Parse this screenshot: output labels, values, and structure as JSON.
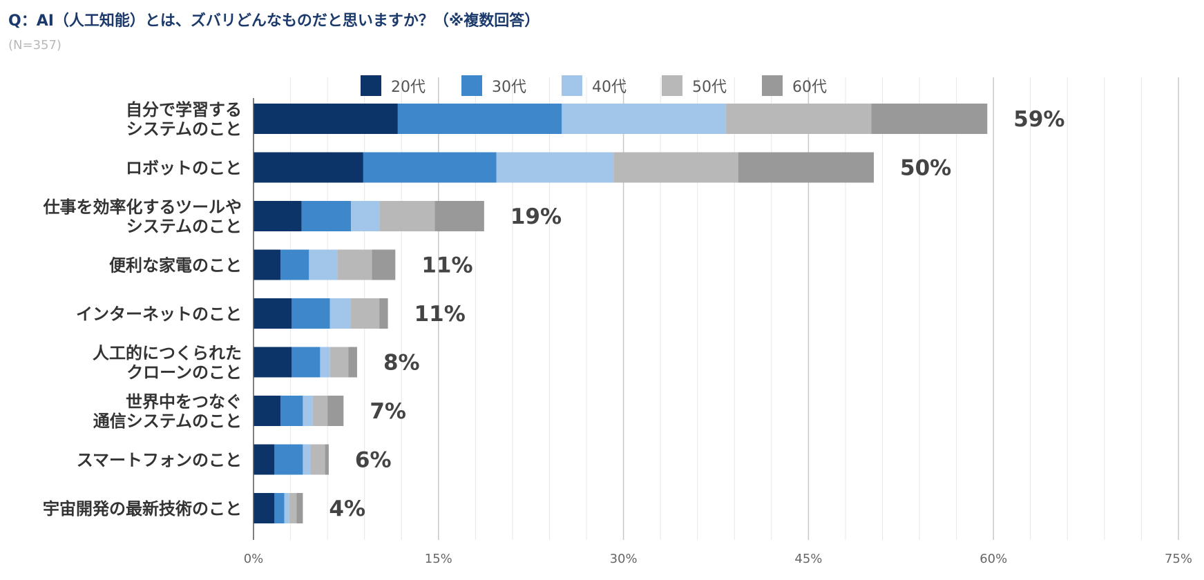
{
  "title": "Q：AI（人工知能）とは、ズバリどんなものだと思いますか？（※複数回答）",
  "subtitle": "(N=357)",
  "chart_data": {
    "type": "bar",
    "orientation": "horizontal",
    "stacked": true,
    "categories": [
      [
        "自分で学習する",
        "システムのこと"
      ],
      [
        "ロボットのこと"
      ],
      [
        "仕事を効率化するツールや",
        "システムのこと"
      ],
      [
        "便利な家電のこと"
      ],
      [
        "インターネットのこと"
      ],
      [
        "人工的につくられた",
        "クローンのこと"
      ],
      [
        "世界中をつなぐ",
        "通信システムのこと"
      ],
      [
        "スマートフォンのこと"
      ],
      [
        "宇宙開発の最新技術のこと"
      ]
    ],
    "series": [
      {
        "name": "20代",
        "color": "#0d3468",
        "values": [
          11.7,
          8.9,
          3.9,
          2.2,
          3.1,
          3.1,
          2.2,
          1.7,
          1.7
        ]
      },
      {
        "name": "30代",
        "color": "#3f87cb",
        "values": [
          13.3,
          10.8,
          4.0,
          2.3,
          3.1,
          2.3,
          1.8,
          2.3,
          0.8
        ]
      },
      {
        "name": "40代",
        "color": "#a1c6ea",
        "values": [
          13.3,
          9.5,
          2.3,
          2.3,
          1.7,
          0.8,
          0.8,
          0.6,
          0.4
        ]
      },
      {
        "name": "50代",
        "color": "#b8b8b8",
        "values": [
          11.8,
          10.1,
          4.5,
          2.8,
          2.3,
          1.5,
          1.2,
          1.2,
          0.6
        ]
      },
      {
        "name": "60代",
        "color": "#999999",
        "values": [
          9.4,
          11.0,
          4.0,
          1.9,
          0.7,
          0.7,
          1.3,
          0.3,
          0.5
        ]
      }
    ],
    "totals": [
      "59%",
      "50%",
      "19%",
      "11%",
      "11%",
      "8%",
      "7%",
      "6%",
      "4%"
    ],
    "xlim": [
      0,
      75
    ],
    "xticks": [
      0,
      15,
      30,
      45,
      60,
      75
    ],
    "xtick_labels": [
      "0%",
      "15%",
      "30%",
      "45%",
      "60%",
      "75%"
    ],
    "minor_grid_step": 3,
    "legend_position": "top"
  }
}
